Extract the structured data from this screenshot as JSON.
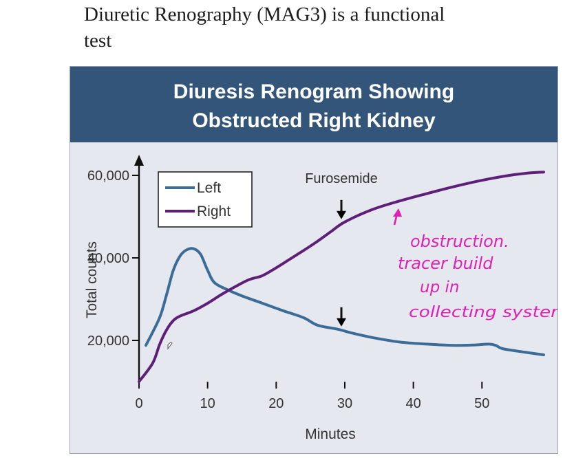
{
  "slide": {
    "heading_line1": "Diuretic Renography (MAG3) is a functional",
    "heading_line2": "test"
  },
  "figure": {
    "title_line1": "Diuresis Renogram Showing",
    "title_line2": "Obstructed Right Kidney"
  },
  "annotation": {
    "lines": [
      "obstruction.",
      "tracer build",
      "up in",
      "collecting system"
    ],
    "color": "#e020b4"
  },
  "chart_data": {
    "type": "line",
    "xlabel": "Minutes",
    "ylabel": "Total counts",
    "xlim": [
      0,
      59
    ],
    "ylim": [
      10000,
      62000
    ],
    "xticks": [
      0,
      10,
      20,
      30,
      40,
      50
    ],
    "yticks": [
      20000,
      40000,
      60000
    ],
    "xtick_labels": [
      "0",
      "10",
      "20",
      "30",
      "40",
      "50"
    ],
    "ytick_labels": [
      "20,000",
      "40,000",
      "60,000"
    ],
    "legend": {
      "position": "top-left"
    },
    "series": [
      {
        "name": "Left",
        "color": "#3b6c98",
        "points": [
          [
            1,
            18800
          ],
          [
            3,
            25500
          ],
          [
            4,
            31000
          ],
          [
            5,
            37000
          ],
          [
            6,
            40500
          ],
          [
            7,
            42000
          ],
          [
            8,
            42200
          ],
          [
            9,
            40800
          ],
          [
            10,
            37000
          ],
          [
            11,
            34000
          ],
          [
            13,
            32200
          ],
          [
            15,
            30800
          ],
          [
            18,
            29000
          ],
          [
            21,
            27200
          ],
          [
            24,
            25500
          ],
          [
            26,
            23700
          ],
          [
            29,
            22700
          ],
          [
            31,
            21800
          ],
          [
            34,
            20700
          ],
          [
            38,
            19600
          ],
          [
            42,
            19100
          ],
          [
            46,
            18800
          ],
          [
            49,
            18900
          ],
          [
            51,
            19100
          ],
          [
            52,
            18800
          ],
          [
            53,
            18000
          ],
          [
            56,
            17200
          ],
          [
            59,
            16500
          ]
        ]
      },
      {
        "name": "Right",
        "color": "#5e1f78",
        "points": [
          [
            0,
            10000
          ],
          [
            2,
            14500
          ],
          [
            3,
            19000
          ],
          [
            4,
            22500
          ],
          [
            5,
            24800
          ],
          [
            6,
            25900
          ],
          [
            8,
            27200
          ],
          [
            10,
            29000
          ],
          [
            12,
            31100
          ],
          [
            14,
            33000
          ],
          [
            16,
            34700
          ],
          [
            18,
            35700
          ],
          [
            20,
            37600
          ],
          [
            22,
            39700
          ],
          [
            24,
            41800
          ],
          [
            26,
            44000
          ],
          [
            28,
            46400
          ],
          [
            30,
            48700
          ],
          [
            34,
            51700
          ],
          [
            38,
            53800
          ],
          [
            42,
            55600
          ],
          [
            46,
            57300
          ],
          [
            50,
            58800
          ],
          [
            54,
            60000
          ],
          [
            57,
            60600
          ],
          [
            59,
            60800
          ]
        ]
      }
    ],
    "annotations": [
      {
        "text": "Furosemide",
        "x": 29.5,
        "y": 58200
      },
      {
        "arrow": "down",
        "x": 29.5,
        "y": 48700
      },
      {
        "arrow": "down",
        "x": 29.5,
        "y": 22700
      }
    ]
  }
}
